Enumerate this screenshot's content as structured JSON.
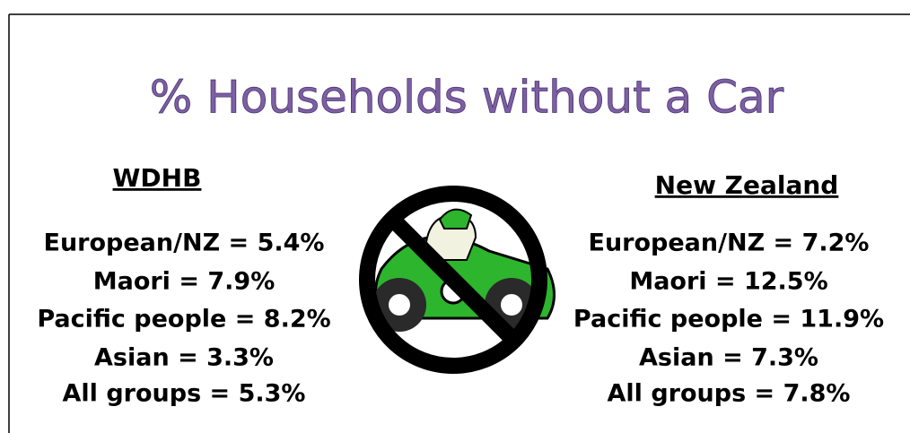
{
  "title": "% Households without a Car",
  "left": {
    "heading": "WDHB",
    "items": [
      "European/NZ = 5.4%",
      "Maori = 7.9%",
      "Pacific people = 8.2%",
      "Asian = 3.3%",
      "All groups = 5.3%"
    ]
  },
  "right": {
    "heading": "New Zealand",
    "items": [
      "European/NZ = 7.2%",
      "Maori = 12.5%",
      "Pacific people = 11.9%",
      "Asian = 7.3%",
      "All groups = 7.8%"
    ]
  }
}
